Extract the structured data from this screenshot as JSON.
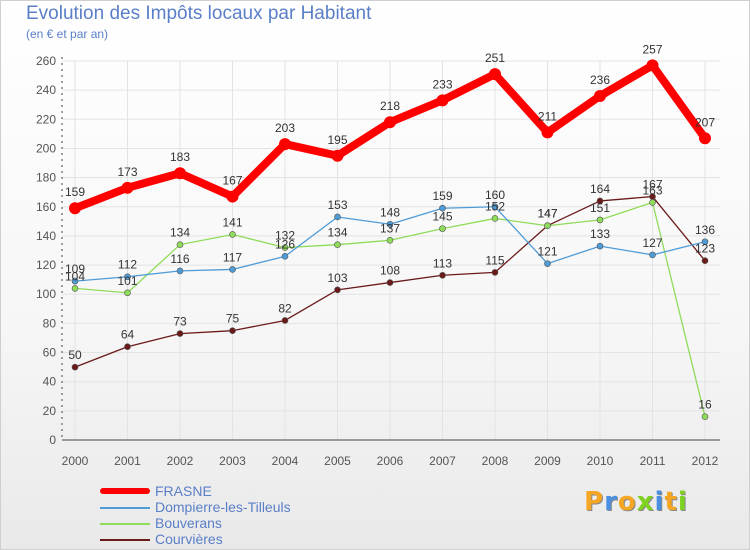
{
  "colors": {
    "title": "#5a7fc8",
    "axis": "#555555",
    "grid": "#e3e3e3",
    "point_label": "#333333"
  },
  "chart_data": {
    "type": "line",
    "title": "Evolution des Impôts locaux par Habitant",
    "subtitle": "(en € et par an)",
    "xlabel": "",
    "ylabel": "",
    "x": [
      "2000",
      "2001",
      "2002",
      "2003",
      "2004",
      "2005",
      "2006",
      "2007",
      "2008",
      "2009",
      "2010",
      "2011",
      "2012"
    ],
    "ylim": [
      0,
      260
    ],
    "yticks": [
      "0",
      "20",
      "40",
      "60",
      "80",
      "100",
      "120",
      "140",
      "160",
      "180",
      "200",
      "220",
      "240",
      "260"
    ],
    "grid": true,
    "legend_position": "bottom-left",
    "series": [
      {
        "name": "FRASNE",
        "color": "#ff0000",
        "values": [
          159,
          173,
          183,
          167,
          203,
          195,
          218,
          233,
          251,
          211,
          236,
          257,
          207
        ],
        "labels": [
          "159",
          "173",
          "183",
          "167",
          "203",
          "195",
          "218",
          "233",
          "251",
          "211",
          "236",
          "257",
          "207"
        ]
      },
      {
        "name": "Dompierre-les-Tilleuls",
        "color": "#4f9bd6",
        "values": [
          109,
          112,
          116,
          117,
          126,
          153,
          148,
          159,
          160,
          121,
          133,
          127,
          136
        ],
        "labels": [
          "109",
          "112",
          "116",
          "117",
          "126",
          "153",
          "148",
          "159",
          "160",
          "121",
          "133",
          "127",
          "136"
        ]
      },
      {
        "name": "Bouverans",
        "color": "#8fdc5a",
        "values": [
          104,
          101,
          134,
          141,
          132,
          134,
          137,
          145,
          152,
          147,
          151,
          163,
          16
        ],
        "labels": [
          "104",
          "101",
          "134",
          "141",
          "132",
          "134",
          "137",
          "145",
          "152",
          "147",
          "151",
          "163",
          "16"
        ]
      },
      {
        "name": "Courvières",
        "color": "#6b1a1a",
        "values": [
          50,
          64,
          73,
          75,
          82,
          103,
          108,
          113,
          115,
          147,
          164,
          167,
          123
        ],
        "labels": [
          "50",
          "64",
          "73",
          "75",
          "82",
          "103",
          "108",
          "113",
          "115",
          "147",
          "164",
          "167",
          "123"
        ]
      }
    ]
  },
  "legend": {
    "items": [
      "FRASNE",
      "Dompierre-les-Tilleuls",
      "Bouverans",
      "Courvières"
    ]
  },
  "logo": {
    "letters": [
      "P",
      "r",
      "o",
      "x",
      "i",
      "t",
      "i"
    ],
    "colors": [
      "#f5a623",
      "#4a90e2",
      "#f5a623",
      "#7ed321",
      "#4a90e2",
      "#f5a623",
      "#7ed321"
    ]
  }
}
